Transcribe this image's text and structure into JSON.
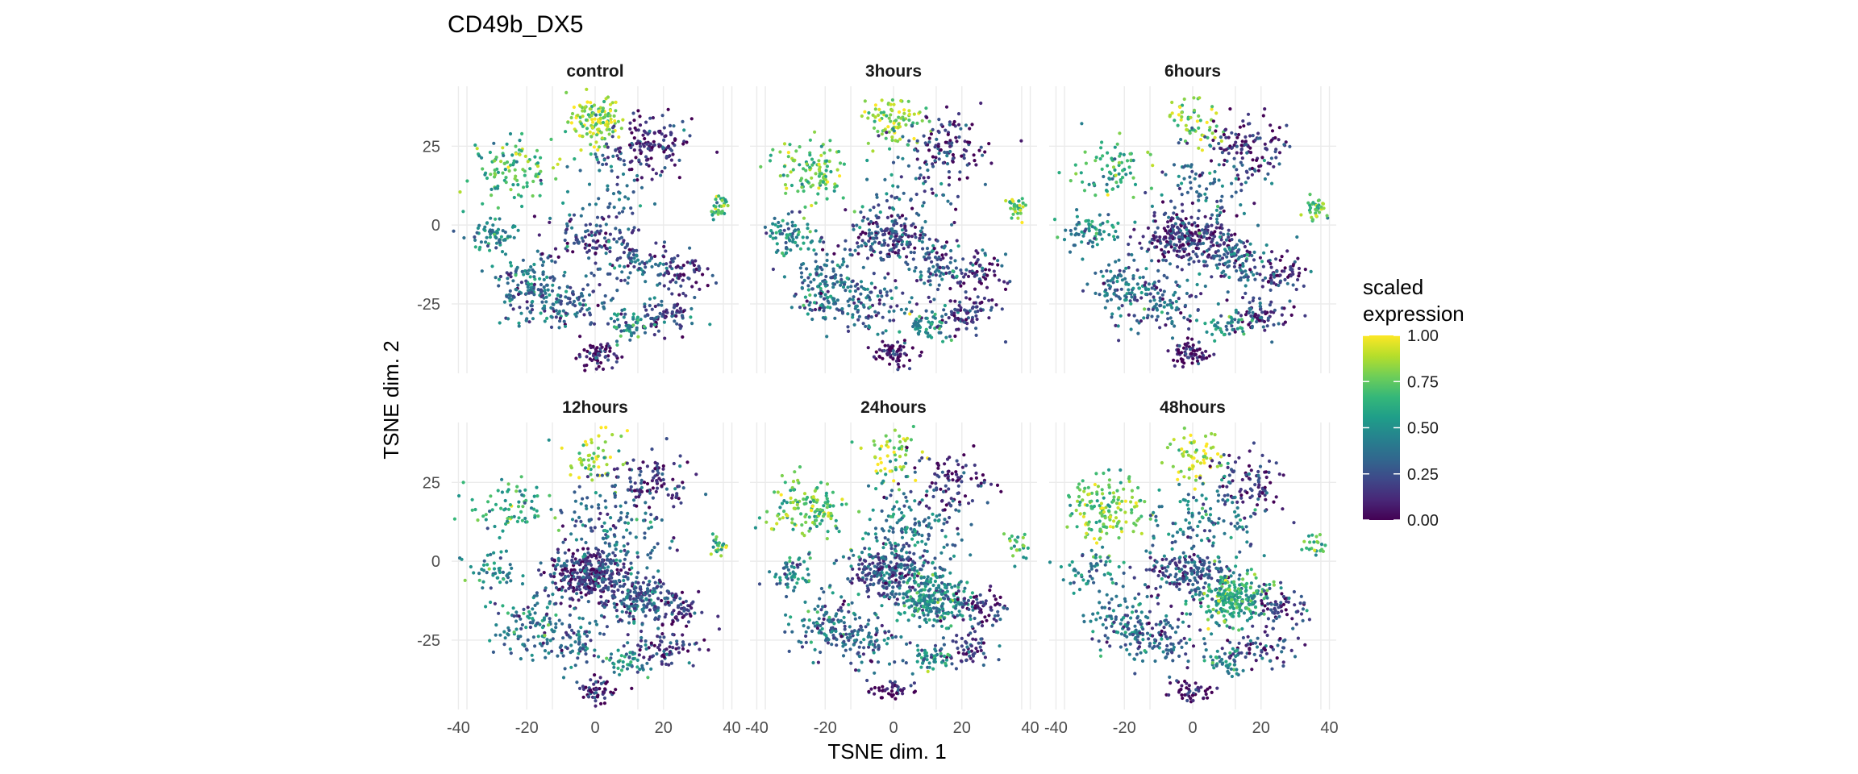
{
  "chart_data": {
    "type": "scatter",
    "title": "CD49b_DX5",
    "xlabel": "TSNE dim. 1",
    "ylabel": "TSNE dim. 2",
    "xlim": [
      -42,
      42
    ],
    "ylim": [
      -47,
      44
    ],
    "x_ticks": [
      -40,
      -20,
      0,
      20,
      40
    ],
    "x_tick_labels": [
      "-40",
      "-20",
      "0",
      "20",
      "40"
    ],
    "y_ticks": [
      -25,
      0,
      25
    ],
    "y_tick_labels": [
      "-25",
      "0",
      "25"
    ],
    "grid": true,
    "legend": {
      "title_lines": [
        "scaled",
        "expression"
      ],
      "position": "right",
      "colorscale": "viridis",
      "range": [
        0,
        1
      ],
      "ticks": [
        "1.00",
        "0.75",
        "0.50",
        "0.25",
        "0.00"
      ],
      "tick_values": [
        1.0,
        0.75,
        0.5,
        0.25,
        0.0
      ],
      "colors": [
        "#440154",
        "#482878",
        "#3e4989",
        "#31688e",
        "#26828e",
        "#1f9e89",
        "#35b779",
        "#6ece58",
        "#b5de2b",
        "#fde725"
      ]
    },
    "panel_order": [
      "control",
      "3hours",
      "6hours",
      "12hours",
      "24hours",
      "48hours"
    ],
    "clusters": [
      {
        "cx": 0,
        "cy": 33,
        "sx": 4,
        "sy": 4,
        "expr": 0.85
      },
      {
        "cx": 16,
        "cy": 25,
        "sx": 6,
        "sy": 5,
        "expr": 0.12
      },
      {
        "cx": -25,
        "cy": 17,
        "sx": 6,
        "sy": 5,
        "expr": 0.72
      },
      {
        "cx": -30,
        "cy": -3,
        "sx": 4,
        "sy": 3,
        "expr": 0.45
      },
      {
        "cx": -20,
        "cy": -20,
        "sx": 5,
        "sy": 5,
        "expr": 0.38
      },
      {
        "cx": -2,
        "cy": -4,
        "sx": 6,
        "sy": 4,
        "expr": 0.2
      },
      {
        "cx": 12,
        "cy": -12,
        "sx": 5,
        "sy": 4,
        "expr": 0.3
      },
      {
        "cx": 25,
        "cy": -15,
        "sx": 4,
        "sy": 3,
        "expr": 0.15
      },
      {
        "cx": 20,
        "cy": -28,
        "sx": 5,
        "sy": 3,
        "expr": 0.18
      },
      {
        "cx": 10,
        "cy": -32,
        "sx": 3,
        "sy": 2,
        "expr": 0.5
      },
      {
        "cx": 0,
        "cy": -41,
        "sx": 3,
        "sy": 2,
        "expr": 0.05
      },
      {
        "cx": 36,
        "cy": 5,
        "sx": 1.5,
        "sy": 2,
        "expr": 0.7
      },
      {
        "cx": -8,
        "cy": -25,
        "sx": 6,
        "sy": 4,
        "expr": 0.32
      },
      {
        "cx": 5,
        "cy": 10,
        "sx": 8,
        "sy": 8,
        "expr": 0.35
      }
    ],
    "panels": [
      {
        "label": "control",
        "weights": [
          1.2,
          1.3,
          1.0,
          0.6,
          1.3,
          0.8,
          0.8,
          0.6,
          0.7,
          0.5,
          0.6,
          0.3,
          0.9,
          0.6
        ],
        "expr_shift": [
          0,
          0,
          0,
          0,
          0,
          0,
          0,
          0,
          0,
          0,
          0,
          0,
          0,
          0
        ]
      },
      {
        "label": "3hours",
        "weights": [
          0.8,
          1.0,
          1.0,
          0.7,
          1.3,
          1.6,
          0.8,
          0.6,
          0.8,
          0.5,
          0.6,
          0.3,
          0.9,
          0.7
        ],
        "expr_shift": [
          0,
          0,
          0,
          0,
          0,
          0,
          0,
          0,
          0,
          0,
          0,
          0,
          0,
          0
        ]
      },
      {
        "label": "6hours",
        "weights": [
          0.5,
          1.0,
          0.7,
          0.6,
          1.0,
          2.4,
          1.0,
          0.6,
          0.7,
          0.4,
          0.6,
          0.3,
          0.8,
          1.0
        ],
        "expr_shift": [
          0,
          0,
          -0.1,
          0,
          0,
          -0.05,
          0,
          0,
          0,
          0,
          0,
          0,
          0,
          0
        ]
      },
      {
        "label": "12hours",
        "weights": [
          0.5,
          0.9,
          0.7,
          0.4,
          0.9,
          3.0,
          1.6,
          0.6,
          0.7,
          0.4,
          0.5,
          0.2,
          0.8,
          1.4
        ],
        "expr_shift": [
          0,
          0,
          -0.1,
          0,
          0,
          -0.05,
          0,
          0,
          0,
          0,
          0,
          0,
          0,
          0
        ]
      },
      {
        "label": "24hours",
        "weights": [
          0.5,
          0.8,
          1.2,
          0.5,
          1.0,
          2.2,
          2.2,
          0.6,
          0.6,
          0.4,
          0.4,
          0.2,
          0.9,
          1.6
        ],
        "expr_shift": [
          0,
          0,
          0,
          0,
          0,
          0.05,
          0.2,
          0,
          0,
          0,
          0,
          0,
          0,
          0.05
        ]
      },
      {
        "label": "48hours",
        "weights": [
          0.6,
          0.8,
          1.4,
          0.5,
          1.0,
          1.6,
          2.2,
          0.6,
          0.6,
          0.4,
          0.4,
          0.2,
          0.9,
          1.2
        ],
        "expr_shift": [
          0.05,
          0,
          0.05,
          0,
          0,
          0.05,
          0.3,
          0,
          0,
          0,
          0,
          0,
          0,
          0.05
        ]
      }
    ]
  }
}
